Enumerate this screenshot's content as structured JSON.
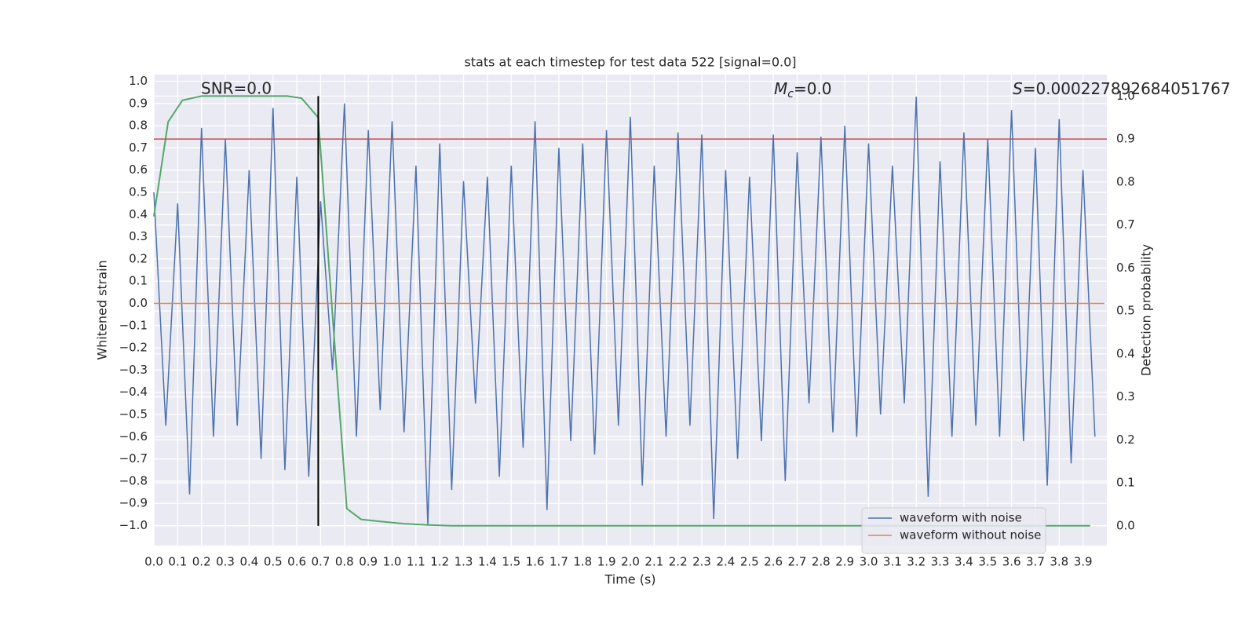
{
  "chart_data": {
    "type": "line",
    "title": "stats at each timestep for test data 522 [signal=0.0]",
    "xlabel": "Time (s)",
    "ylabel": "Whitened strain",
    "y2label": "Detection probability",
    "annotations": {
      "snr": "SNR=0.0",
      "mc": {
        "symbol": "M",
        "subscript": "c",
        "text": "=0.0"
      },
      "s": {
        "symbol": "S",
        "text": "=0.000227892684051767"
      }
    },
    "xlim": [
      0,
      4.0
    ],
    "xticks": [
      {
        "value": 0,
        "label": "0.0"
      },
      0.1,
      0.2,
      0.3,
      0.4,
      0.5,
      0.6,
      0.7,
      0.8,
      0.9,
      {
        "value": 1,
        "label": "1.0"
      },
      1.1,
      1.2,
      1.3,
      1.4,
      1.5,
      1.6,
      1.7,
      1.8,
      1.9,
      {
        "value": 2,
        "label": "2.0"
      },
      2.1,
      2.2,
      2.3,
      2.4,
      2.5,
      2.6,
      2.7,
      2.8,
      2.9,
      {
        "value": 3,
        "label": "3.0"
      },
      3.1,
      3.2,
      3.3,
      3.4,
      3.5,
      3.6,
      3.7,
      3.8,
      3.9
    ],
    "ylim": [
      -1.09,
      1.03
    ],
    "yticks": [
      {
        "value": 1,
        "label": "1.0"
      },
      0.9,
      0.8,
      0.7,
      0.6,
      0.5,
      0.4,
      0.3,
      0.2,
      0.1,
      {
        "value": 0,
        "label": "0.0"
      },
      {
        "value": -0.1,
        "label": "−0.1"
      },
      {
        "value": -0.2,
        "label": "−0.2"
      },
      {
        "value": -0.3,
        "label": "−0.3"
      },
      {
        "value": -0.4,
        "label": "−0.4"
      },
      {
        "value": -0.5,
        "label": "−0.5"
      },
      {
        "value": -0.6,
        "label": "−0.6"
      },
      {
        "value": -0.7,
        "label": "−0.7"
      },
      {
        "value": -0.8,
        "label": "−0.8"
      },
      {
        "value": -0.9,
        "label": "−0.9"
      },
      {
        "value": -1,
        "label": "−1.0"
      }
    ],
    "y2lim": [
      -0.046,
      1.05
    ],
    "y2ticks": [
      {
        "value": 0,
        "label": "0.0"
      },
      0.1,
      0.2,
      0.3,
      0.4,
      0.5,
      0.6,
      0.7,
      0.8,
      0.9,
      {
        "value": 1,
        "label": "1.0"
      }
    ],
    "grid": true,
    "legend": "lower right",
    "hline": {
      "y2": 0.9,
      "color": "#c44e52"
    },
    "vline": {
      "x": 0.69,
      "y2": [
        0,
        1
      ],
      "color": "#000000"
    },
    "series": [
      {
        "name": "waveform with noise",
        "color": "#4c72b0",
        "x": [
          0,
          0.05,
          0.1,
          0.15,
          0.2,
          0.25,
          0.3,
          0.35,
          0.4,
          0.45,
          0.5,
          0.55,
          0.6,
          0.65,
          0.7,
          0.75,
          0.8,
          0.85,
          0.9,
          0.95,
          1.0,
          1.05,
          1.1,
          1.15,
          1.2,
          1.25,
          1.3,
          1.35,
          1.4,
          1.45,
          1.5,
          1.55,
          1.6,
          1.65,
          1.7,
          1.75,
          1.8,
          1.85,
          1.9,
          1.95,
          2.0,
          2.05,
          2.1,
          2.15,
          2.2,
          2.25,
          2.3,
          2.35,
          2.4,
          2.45,
          2.5,
          2.55,
          2.6,
          2.65,
          2.7,
          2.75,
          2.8,
          2.85,
          2.9,
          2.95,
          3.0,
          3.05,
          3.1,
          3.15,
          3.2,
          3.25,
          3.3,
          3.35,
          3.4,
          3.45,
          3.5,
          3.55,
          3.6,
          3.65,
          3.7,
          3.75,
          3.8,
          3.85,
          3.9,
          3.95
        ],
        "values": [
          0.5,
          -0.55,
          0.45,
          -0.86,
          0.79,
          -0.6,
          0.74,
          -0.55,
          0.6,
          -0.7,
          0.88,
          -0.75,
          0.57,
          -0.78,
          0.46,
          -0.3,
          0.9,
          -0.6,
          0.78,
          -0.48,
          0.82,
          -0.58,
          0.62,
          -1.0,
          0.72,
          -0.84,
          0.55,
          -0.45,
          0.57,
          -0.78,
          0.62,
          -0.65,
          0.82,
          -0.93,
          0.7,
          -0.62,
          0.72,
          -0.68,
          0.78,
          -0.55,
          0.84,
          -0.82,
          0.62,
          -0.6,
          0.77,
          -0.55,
          0.76,
          -0.97,
          0.6,
          -0.7,
          0.57,
          -0.62,
          0.76,
          -0.8,
          0.68,
          -0.45,
          0.75,
          -0.58,
          0.8,
          -0.6,
          0.72,
          -0.5,
          0.62,
          -0.45,
          0.93,
          -0.87,
          0.64,
          -0.6,
          0.77,
          -0.55,
          0.74,
          -0.6,
          0.87,
          -0.62,
          0.7,
          -0.82,
          0.83,
          -0.72,
          0.6,
          -0.6
        ]
      },
      {
        "name": "waveform without noise",
        "color": "#dd8452",
        "x": [
          0,
          3.99
        ],
        "values": [
          0,
          0
        ]
      },
      {
        "color": "#55a868",
        "axis": "y2",
        "x": [
          0,
          0.06,
          0.12,
          0.2,
          0.3,
          0.4,
          0.5,
          0.56,
          0.62,
          0.69,
          0.75,
          0.81,
          0.87,
          0.95,
          1.05,
          1.15,
          1.25,
          3.93
        ],
        "values": [
          0.72,
          0.94,
          0.99,
          1.0,
          1.0,
          1.0,
          1.0,
          1.0,
          0.995,
          0.95,
          0.49,
          0.04,
          0.015,
          0.01,
          0.005,
          0.002,
          0,
          0
        ]
      }
    ]
  }
}
